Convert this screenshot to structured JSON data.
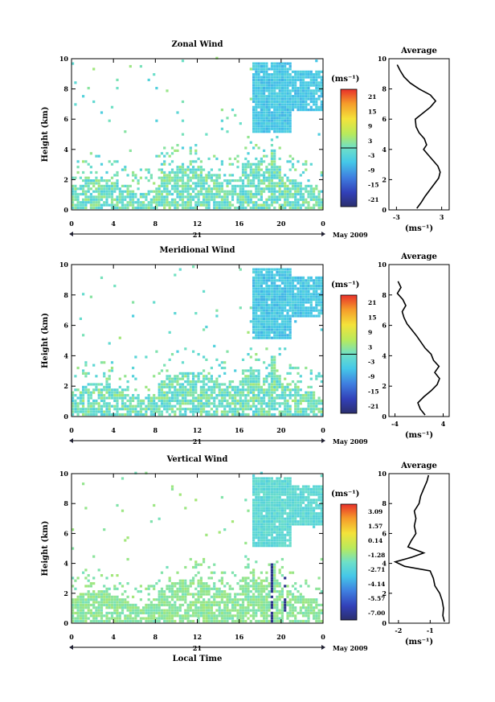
{
  "chart_data": [
    {
      "type": "heatmap",
      "title": "Zonal Wind",
      "ylabel": "Height (km)",
      "xlabel": "",
      "x_ticks": [
        "0",
        "4",
        "8",
        "12",
        "16",
        "20",
        "0"
      ],
      "y_ticks": [
        "0",
        "2",
        "4",
        "6",
        "8",
        "10"
      ],
      "xlim": [
        0,
        24
      ],
      "ylim": [
        0,
        10
      ],
      "date_mark": "21",
      "date_label": "May 2009",
      "colorbar": {
        "unit": "(ms⁻¹)",
        "labels": [
          "21",
          "15",
          "9",
          "3",
          "-3",
          "-9",
          "-15",
          "-21"
        ],
        "range": [
          -24,
          24
        ]
      },
      "average_panel": {
        "title": "Average",
        "xlabel": "(ms⁻¹)",
        "x_ticks": [
          "-3",
          "3"
        ],
        "xlim": [
          -4,
          4
        ],
        "y_ticks": [
          "0",
          "2",
          "4",
          "6",
          "8",
          "10"
        ],
        "profile": [
          [
            -0.3,
            0.1
          ],
          [
            0.3,
            0.5
          ],
          [
            0.8,
            0.9
          ],
          [
            1.4,
            1.3
          ],
          [
            2.0,
            1.7
          ],
          [
            2.6,
            2.1
          ],
          [
            2.8,
            2.5
          ],
          [
            2.5,
            2.9
          ],
          [
            1.8,
            3.3
          ],
          [
            1.1,
            3.7
          ],
          [
            0.6,
            4.0
          ],
          [
            1.0,
            4.3
          ],
          [
            0.7,
            4.7
          ],
          [
            0.0,
            5.1
          ],
          [
            -0.4,
            5.5
          ],
          [
            -0.5,
            6.0
          ],
          [
            0.5,
            6.4
          ],
          [
            1.5,
            6.8
          ],
          [
            2.2,
            7.2
          ],
          [
            1.5,
            7.6
          ],
          [
            0.0,
            8.0
          ],
          [
            -1.2,
            8.4
          ],
          [
            -2.0,
            8.8
          ],
          [
            -2.5,
            9.2
          ],
          [
            -2.9,
            9.6
          ]
        ]
      }
    },
    {
      "type": "heatmap",
      "title": "Meridional Wind",
      "ylabel": "Height (km)",
      "xlabel": "",
      "x_ticks": [
        "0",
        "4",
        "8",
        "12",
        "16",
        "20",
        "0"
      ],
      "y_ticks": [
        "0",
        "2",
        "4",
        "6",
        "8",
        "10"
      ],
      "xlim": [
        0,
        24
      ],
      "ylim": [
        0,
        10
      ],
      "date_mark": "21",
      "date_label": "May 2009",
      "colorbar": {
        "unit": "(ms⁻¹)",
        "labels": [
          "21",
          "15",
          "9",
          "3",
          "-3",
          "-9",
          "-15",
          "-21"
        ],
        "range": [
          -24,
          24
        ]
      },
      "average_panel": {
        "title": "Average",
        "xlabel": "(ms⁻¹)",
        "x_ticks": [
          "-4",
          "4"
        ],
        "xlim": [
          -5,
          5
        ],
        "y_ticks": [
          "0",
          "2",
          "4",
          "6",
          "8",
          "10"
        ],
        "profile": [
          [
            1.0,
            0.1
          ],
          [
            0.2,
            0.5
          ],
          [
            -0.2,
            0.9
          ],
          [
            0.8,
            1.3
          ],
          [
            2.0,
            1.7
          ],
          [
            3.0,
            2.1
          ],
          [
            3.4,
            2.5
          ],
          [
            2.6,
            2.9
          ],
          [
            3.3,
            3.3
          ],
          [
            2.4,
            3.7
          ],
          [
            2.0,
            4.1
          ],
          [
            1.0,
            4.5
          ],
          [
            0.3,
            4.9
          ],
          [
            -0.4,
            5.3
          ],
          [
            -1.2,
            5.7
          ],
          [
            -2.0,
            6.1
          ],
          [
            -2.5,
            6.5
          ],
          [
            -2.8,
            6.9
          ],
          [
            -2.2,
            7.3
          ],
          [
            -2.7,
            7.7
          ],
          [
            -3.6,
            8.1
          ],
          [
            -3.0,
            8.5
          ],
          [
            -3.5,
            8.9
          ]
        ]
      }
    },
    {
      "type": "heatmap",
      "title": "Vertical Wind",
      "ylabel": "Height (km)",
      "xlabel": "Local Time",
      "x_ticks": [
        "0",
        "4",
        "8",
        "12",
        "16",
        "20",
        "0"
      ],
      "y_ticks": [
        "0",
        "2",
        "4",
        "6",
        "8",
        "10"
      ],
      "xlim": [
        0,
        24
      ],
      "ylim": [
        0,
        10
      ],
      "date_mark": "21",
      "date_label": "May 2009",
      "colorbar": {
        "unit": "(ms⁻¹)",
        "labels": [
          "3.09",
          "1.57",
          "0.14",
          "-1.28",
          "-2.71",
          "-4.14",
          "-5.57",
          "-7.00"
        ],
        "range": [
          3.8,
          -7.7
        ]
      },
      "average_panel": {
        "title": "Average",
        "xlabel": "(ms⁻¹)",
        "x_ticks": [
          "-2",
          "-1"
        ],
        "xlim": [
          -2.3,
          -0.4
        ],
        "y_ticks": [
          "0",
          "2",
          "4",
          "6",
          "8",
          "10"
        ],
        "profile": [
          [
            -0.55,
            0.1
          ],
          [
            -0.6,
            0.5
          ],
          [
            -0.58,
            1.0
          ],
          [
            -0.62,
            1.5
          ],
          [
            -0.7,
            2.0
          ],
          [
            -0.85,
            2.5
          ],
          [
            -0.9,
            3.0
          ],
          [
            -1.0,
            3.5
          ],
          [
            -1.8,
            3.8
          ],
          [
            -2.1,
            4.1
          ],
          [
            -1.6,
            4.4
          ],
          [
            -1.2,
            4.7
          ],
          [
            -1.7,
            5.1
          ],
          [
            -1.6,
            5.5
          ],
          [
            -1.45,
            6.0
          ],
          [
            -1.5,
            6.5
          ],
          [
            -1.45,
            7.0
          ],
          [
            -1.5,
            7.5
          ],
          [
            -1.35,
            8.0
          ],
          [
            -1.3,
            8.5
          ],
          [
            -1.2,
            9.0
          ],
          [
            -1.1,
            9.5
          ],
          [
            -1.05,
            9.9
          ]
        ]
      }
    }
  ]
}
